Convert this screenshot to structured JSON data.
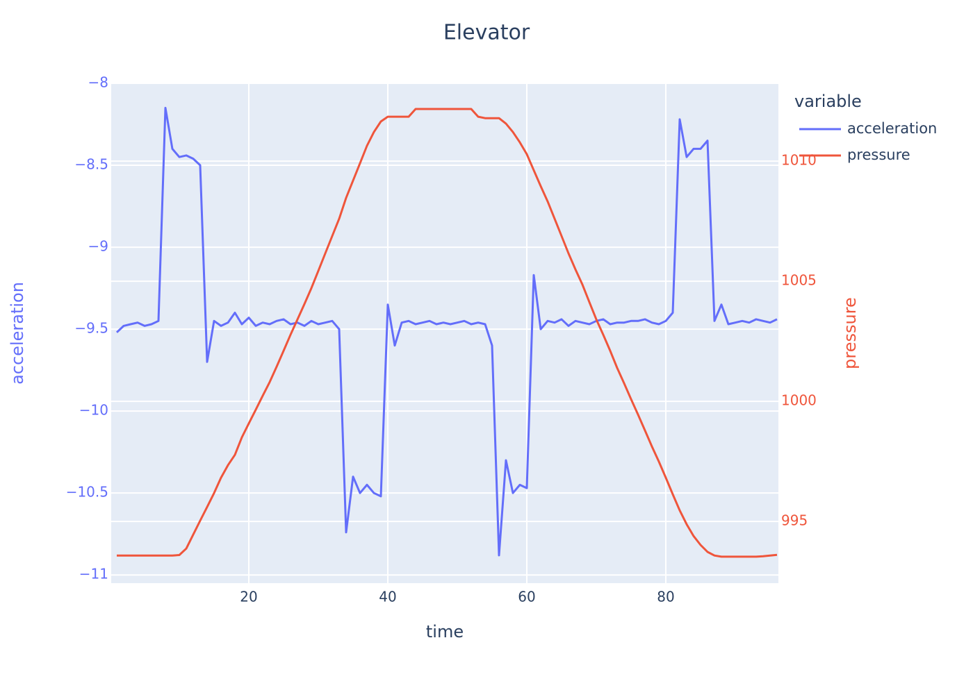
{
  "chart_data": {
    "type": "line",
    "title": "Elevator",
    "x_label": "time",
    "y_label": "acceleration",
    "y2_label": "pressure",
    "legend_title": "variable",
    "x": [
      1,
      2,
      3,
      4,
      5,
      6,
      7,
      8,
      9,
      10,
      11,
      12,
      13,
      14,
      15,
      16,
      17,
      18,
      19,
      20,
      21,
      22,
      23,
      24,
      25,
      26,
      27,
      28,
      29,
      30,
      31,
      32,
      33,
      34,
      35,
      36,
      37,
      38,
      39,
      40,
      41,
      42,
      43,
      44,
      45,
      46,
      47,
      48,
      49,
      50,
      51,
      52,
      53,
      54,
      55,
      56,
      57,
      58,
      59,
      60,
      61,
      62,
      63,
      64,
      65,
      66,
      67,
      68,
      69,
      70,
      71,
      72,
      73,
      74,
      75,
      76,
      77,
      78,
      79,
      80,
      81,
      82,
      83,
      84,
      85,
      86,
      87,
      88,
      89,
      90,
      91,
      92,
      93,
      94,
      95,
      96
    ],
    "series": [
      {
        "name": "acceleration",
        "color": "#636efa",
        "axis": "y",
        "values": [
          -9.52,
          -9.48,
          -9.47,
          -9.46,
          -9.48,
          -9.47,
          -9.45,
          -8.15,
          -8.4,
          -8.45,
          -8.44,
          -8.46,
          -8.5,
          -9.7,
          -9.45,
          -9.48,
          -9.46,
          -9.4,
          -9.47,
          -9.43,
          -9.48,
          -9.46,
          -9.47,
          -9.45,
          -9.44,
          -9.47,
          -9.46,
          -9.48,
          -9.45,
          -9.47,
          -9.46,
          -9.45,
          -9.5,
          -10.74,
          -10.4,
          -10.5,
          -10.45,
          -10.5,
          -10.52,
          -9.35,
          -9.6,
          -9.46,
          -9.45,
          -9.47,
          -9.46,
          -9.45,
          -9.47,
          -9.46,
          -9.47,
          -9.46,
          -9.45,
          -9.47,
          -9.46,
          -9.47,
          -9.6,
          -10.88,
          -10.3,
          -10.5,
          -10.45,
          -10.47,
          -9.17,
          -9.5,
          -9.45,
          -9.46,
          -9.44,
          -9.48,
          -9.45,
          -9.46,
          -9.47,
          -9.45,
          -9.44,
          -9.47,
          -9.46,
          -9.46,
          -9.45,
          -9.45,
          -9.44,
          -9.46,
          -9.47,
          -9.45,
          -9.4,
          -8.22,
          -8.45,
          -8.4,
          -8.4,
          -8.35,
          -9.45,
          -9.35,
          -9.47,
          -9.46,
          -9.45,
          -9.46,
          -9.44,
          -9.45,
          -9.46,
          -9.44
        ]
      },
      {
        "name": "pressure",
        "color": "#EF553B",
        "axis": "y2",
        "values": [
          993.58,
          993.58,
          993.58,
          993.58,
          993.58,
          993.58,
          993.58,
          993.58,
          993.58,
          993.6,
          993.87,
          994.45,
          995.03,
          995.6,
          996.18,
          996.82,
          997.34,
          997.77,
          998.5,
          999.08,
          999.65,
          1000.23,
          1000.8,
          1001.44,
          1002.1,
          1002.77,
          1003.41,
          1004.05,
          1004.71,
          1005.43,
          1006.16,
          1006.88,
          1007.6,
          1008.47,
          1009.19,
          1009.91,
          1010.64,
          1011.21,
          1011.65,
          1011.85,
          1011.85,
          1011.85,
          1011.85,
          1012.17,
          1012.17,
          1012.17,
          1012.17,
          1012.17,
          1012.17,
          1012.17,
          1012.17,
          1012.17,
          1011.85,
          1011.79,
          1011.79,
          1011.79,
          1011.56,
          1011.21,
          1010.78,
          1010.29,
          1009.62,
          1008.96,
          1008.32,
          1007.6,
          1006.88,
          1006.16,
          1005.49,
          1004.86,
          1004.13,
          1003.41,
          1002.77,
          1002.1,
          1001.39,
          1000.75,
          1000.09,
          999.45,
          998.79,
          998.12,
          997.49,
          996.82,
          996.13,
          995.46,
          994.88,
          994.39,
          994.02,
          993.73,
          993.58,
          993.53,
          993.53,
          993.53,
          993.53,
          993.53,
          993.53,
          993.55,
          993.58,
          993.61
        ]
      }
    ],
    "xlim": [
      0.2,
      96.2
    ],
    "xticks": [
      20,
      40,
      60,
      80
    ],
    "ylim": [
      -11.05,
      -8
    ],
    "yticks": [
      {
        "value": -8,
        "label": "−8"
      },
      {
        "value": -8.5,
        "label": "−8.5"
      },
      {
        "value": -9,
        "label": "−9"
      },
      {
        "value": -9.5,
        "label": "−9.5"
      },
      {
        "value": -10,
        "label": "−10"
      },
      {
        "value": -10.5,
        "label": "−10.5"
      },
      {
        "value": -11,
        "label": "−11"
      }
    ],
    "y2lim": [
      992.43,
      1013.24
    ],
    "y2ticks": [
      995,
      1000,
      1005,
      1010
    ],
    "grid": true
  }
}
